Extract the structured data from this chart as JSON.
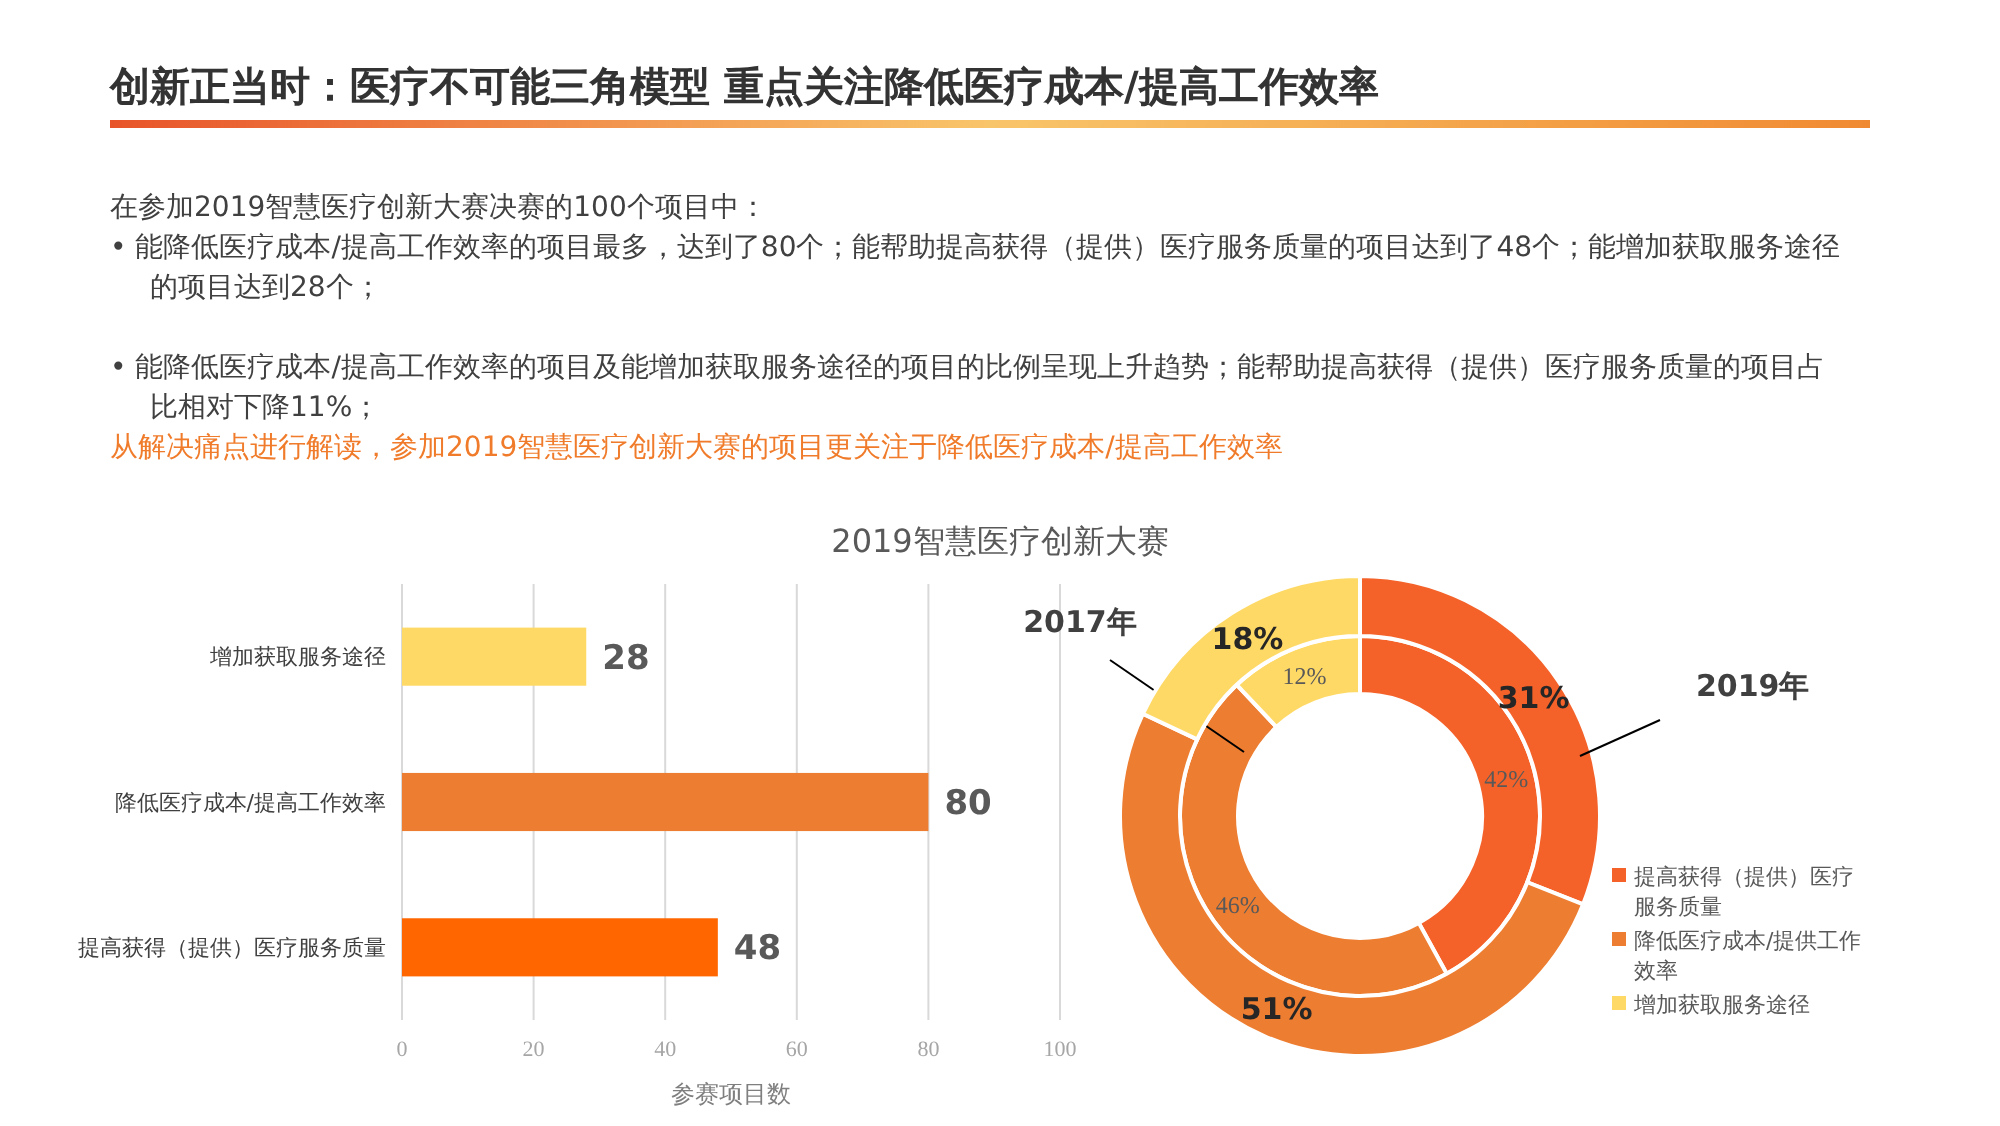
{
  "chart_data": [
    {
      "type": "other",
      "title": "创新正当时：医疗不可能三角模型 重点关注降低医疗成本/提高工作效率",
      "annotations": [
        "在参加2019智慧医疗创新大赛决赛的100个项目中：",
        "• 能降低医疗成本/提高工作效率的项目最多，达到了80个；能帮助提高获得（提供）医疗服务质量的项目达到了48个；能增加获取服务途径的项目达到28个；",
        "• 能降低医疗成本/提高工作效率的项目及能增加获取服务途径的项目的比例呈现上升趋势；能帮助提高获得（提供）医疗服务质量的项目占比相对下降11%；",
        "从解决痛点进行解读，参加2019智慧医疗创新大赛的项目更关注于降低医疗成本/提高工作效率"
      ]
    },
    {
      "type": "bar",
      "orientation": "horizontal",
      "title": "2019智慧医疗创新大赛",
      "xlabel": "参赛项目数",
      "categories": [
        "增加获取服务途径",
        "降低医疗成本/提高工作效率",
        "提高获得（提供）医疗服务质量"
      ],
      "values": [
        28,
        80,
        48
      ],
      "colors": [
        "#ffd966",
        "#ed7d31",
        "#ff6600"
      ],
      "xlim": [
        0,
        100
      ],
      "xticks": [
        0,
        20,
        40,
        60,
        80,
        100
      ],
      "grid": "x",
      "data_labels": true
    },
    {
      "type": "donut",
      "categories": [
        "提高获得（提供）医疗服务质量",
        "降低医疗成本/提供工作效率",
        "增加获取服务途径"
      ],
      "colors": [
        "#f4622a",
        "#ed7d31",
        "#ffd966"
      ],
      "series": [
        {
          "name": "2017年",
          "values": [
            42,
            46,
            12
          ],
          "value_labels": [
            "42%",
            "46%",
            "12%"
          ]
        },
        {
          "name": "2019年",
          "values": [
            31,
            51,
            18
          ],
          "value_labels": [
            "31%",
            "51%",
            "18%"
          ]
        }
      ],
      "legend": "bottom right"
    }
  ]
}
